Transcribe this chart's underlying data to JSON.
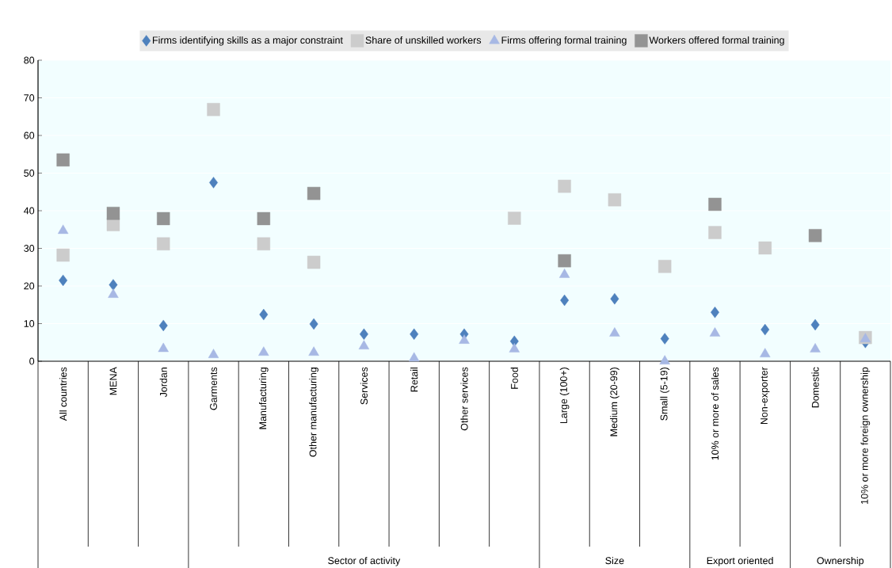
{
  "chart_data": {
    "type": "scatter",
    "categories": [
      "All countries",
      "MENA",
      "Jordan",
      "Garments",
      "Manufacturing",
      "Other manufacturing",
      "Services",
      "Retail",
      "Other services",
      "Food",
      "Large (100+)",
      "Medium (20-99)",
      "Small (5-19)",
      "10% or more of sales",
      "Non-exporter",
      "Domestic",
      "10% or more foreign ownership"
    ],
    "series": [
      {
        "name": "Firms identifying skills as a major constraint",
        "color": "#4e81bd",
        "marker": "diamond",
        "values": [
          21.5,
          20.3,
          9.5,
          47.5,
          12.4,
          9.9,
          7.2,
          7.2,
          7.2,
          5.3,
          16.2,
          16.6,
          6,
          13,
          8.4,
          9.7,
          5
        ]
      },
      {
        "name": "Share of unskilled workers",
        "color": "#cccccc",
        "marker": "square",
        "values": [
          28.2,
          36.3,
          31.2,
          66.9,
          31.2,
          26.3,
          null,
          null,
          null,
          38,
          46.5,
          42.9,
          25.2,
          34.2,
          30.1,
          null,
          6.3
        ]
      },
      {
        "name": "Firms offering formal training",
        "color": "#a7b8e4",
        "marker": "triangle",
        "values": [
          34.7,
          17.7,
          3.3,
          1.7,
          2.3,
          2.3,
          4,
          0.8,
          5.5,
          3.2,
          23,
          7.4,
          0,
          7.4,
          1.9,
          3.2,
          5.9
        ]
      },
      {
        "name": "Workers offered formal training",
        "color": "#939393",
        "marker": "square",
        "values": [
          53.5,
          39.3,
          37.9,
          null,
          37.9,
          44.6,
          null,
          null,
          null,
          null,
          26.7,
          null,
          null,
          41.7,
          null,
          33.4,
          null
        ]
      }
    ],
    "ylim": [
      0,
      80
    ],
    "yticks": [
      0,
      10,
      20,
      30,
      40,
      50,
      60,
      70,
      80
    ],
    "grid": true,
    "legend": "top",
    "annotations": [
      "Sector of activity",
      "Size",
      "Export oriented",
      "Ownership"
    ]
  }
}
